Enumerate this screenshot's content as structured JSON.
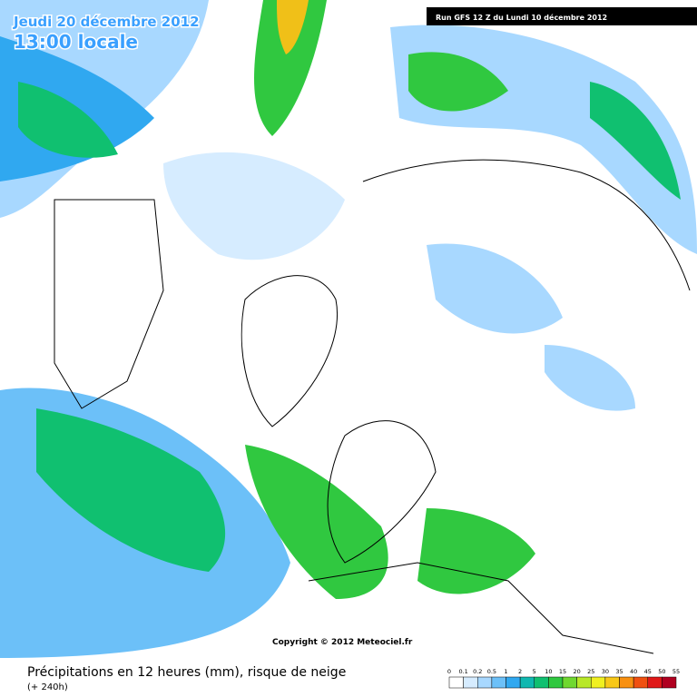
{
  "header": {
    "date": "Jeudi 20 décembre 2012",
    "time": "13:00 locale",
    "run": "Run GFS 12 Z du Lundi 10 décembre 2012"
  },
  "copyright": "Copyright © 2012 Meteociel.fr",
  "legend": {
    "title": "Précipitations en 12 heures (mm), risque de neige",
    "subtitle": "(+ 240h)",
    "values": [
      0,
      0.1,
      0.2,
      0.5,
      1,
      2,
      5,
      10,
      15,
      20,
      25,
      30,
      35,
      40,
      45,
      50,
      55
    ],
    "colors": [
      "#ffffff",
      "#d6ecff",
      "#a8d8ff",
      "#6cc0f8",
      "#30a8f0",
      "#10b8b0",
      "#10c070",
      "#30c840",
      "#70d830",
      "#b8e828",
      "#f0f020",
      "#f8c818",
      "#f89010",
      "#f05010",
      "#e01818",
      "#b00020"
    ]
  }
}
